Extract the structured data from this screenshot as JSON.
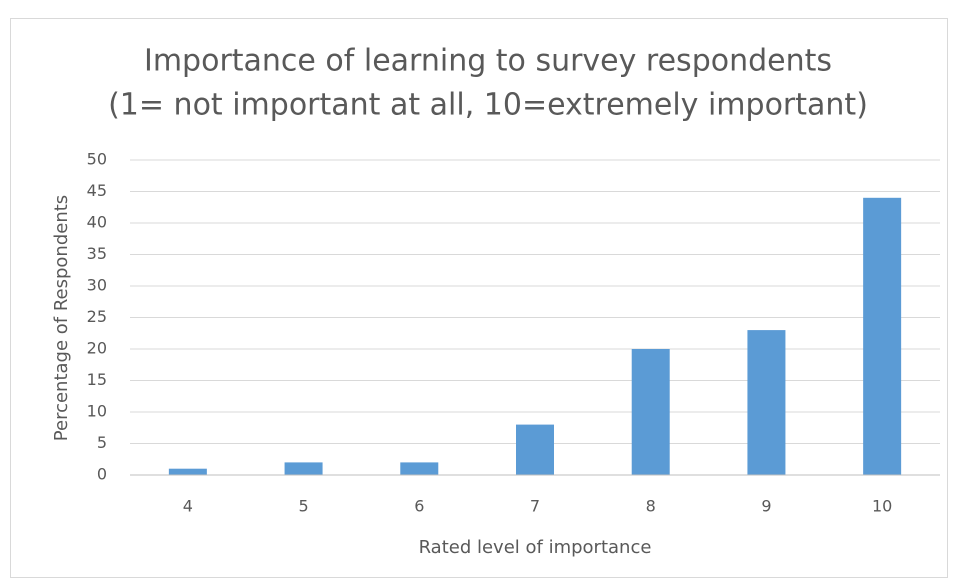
{
  "chart_data": {
    "type": "bar",
    "title": "Importance of learning to survey respondents",
    "subtitle": "(1= not important at all, 10=extremely important)",
    "x_label": "Rated level of importance",
    "y_label": "Percentage of Respondents",
    "categories": [
      "4",
      "5",
      "6",
      "7",
      "8",
      "9",
      "10"
    ],
    "values": [
      1,
      2,
      2,
      8,
      20,
      23,
      44
    ],
    "color": "#5b9bd5",
    "ylim": [
      0,
      50
    ],
    "yticks": [
      0,
      5,
      10,
      15,
      20,
      25,
      30,
      35,
      40,
      45,
      50
    ],
    "grid": true
  }
}
